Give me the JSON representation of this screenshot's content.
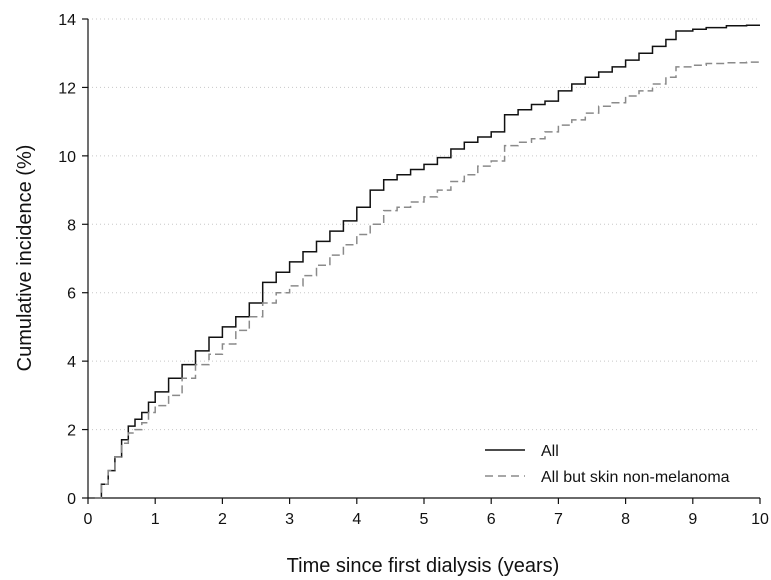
{
  "chart_data": {
    "type": "line",
    "title": "",
    "xlabel": "Time since first dialysis (years)",
    "ylabel": "Cumulative incidence (%)",
    "xlim": [
      0,
      10
    ],
    "ylim": [
      0,
      14
    ],
    "x_ticks": [
      0,
      1,
      2,
      3,
      4,
      5,
      6,
      7,
      8,
      9,
      10
    ],
    "y_ticks": [
      0,
      2,
      4,
      6,
      8,
      10,
      12,
      14
    ],
    "grid": "horizontal dotted",
    "legend_position": "bottom-right",
    "series": [
      {
        "name": "All",
        "style": "solid",
        "color": "#111111",
        "x": [
          0.1,
          0.2,
          0.3,
          0.4,
          0.5,
          0.6,
          0.7,
          0.8,
          0.9,
          1.0,
          1.2,
          1.4,
          1.6,
          1.8,
          2.0,
          2.2,
          2.4,
          2.6,
          2.8,
          3.0,
          3.2,
          3.4,
          3.6,
          3.8,
          4.0,
          4.2,
          4.4,
          4.6,
          4.8,
          5.0,
          5.2,
          5.4,
          5.6,
          5.8,
          6.0,
          6.2,
          6.4,
          6.6,
          6.8,
          7.0,
          7.2,
          7.4,
          7.6,
          7.8,
          8.0,
          8.2,
          8.4,
          8.6,
          8.75,
          9.0,
          9.2,
          9.5,
          9.8,
          10.0
        ],
        "y": [
          0.0,
          0.4,
          0.8,
          1.2,
          1.7,
          2.1,
          2.3,
          2.5,
          2.8,
          3.1,
          3.5,
          3.9,
          4.3,
          4.7,
          5.0,
          5.3,
          5.7,
          6.3,
          6.6,
          6.9,
          7.2,
          7.5,
          7.8,
          8.1,
          8.5,
          9.0,
          9.3,
          9.45,
          9.6,
          9.75,
          9.95,
          10.2,
          10.4,
          10.55,
          10.7,
          11.2,
          11.35,
          11.5,
          11.6,
          11.9,
          12.1,
          12.3,
          12.45,
          12.6,
          12.8,
          13.0,
          13.2,
          13.4,
          13.65,
          13.7,
          13.75,
          13.8,
          13.82,
          13.82
        ]
      },
      {
        "name": "All but skin non-melanoma",
        "style": "dashed",
        "color": "#8a8a8a",
        "x": [
          0.1,
          0.2,
          0.3,
          0.4,
          0.5,
          0.6,
          0.7,
          0.8,
          0.9,
          1.0,
          1.2,
          1.4,
          1.6,
          1.8,
          2.0,
          2.2,
          2.4,
          2.6,
          2.8,
          3.0,
          3.2,
          3.4,
          3.6,
          3.8,
          4.0,
          4.2,
          4.4,
          4.6,
          4.8,
          5.0,
          5.2,
          5.4,
          5.6,
          5.8,
          6.0,
          6.2,
          6.4,
          6.6,
          6.8,
          7.0,
          7.2,
          7.4,
          7.6,
          7.8,
          8.0,
          8.2,
          8.4,
          8.6,
          8.75,
          9.0,
          9.2,
          9.5,
          9.8,
          10.0
        ],
        "y": [
          0.0,
          0.4,
          0.8,
          1.2,
          1.6,
          1.9,
          2.0,
          2.2,
          2.5,
          2.7,
          3.0,
          3.5,
          3.9,
          4.2,
          4.5,
          4.9,
          5.3,
          5.7,
          6.0,
          6.2,
          6.5,
          6.8,
          7.1,
          7.4,
          7.7,
          8.0,
          8.4,
          8.5,
          8.65,
          8.8,
          9.0,
          9.25,
          9.45,
          9.7,
          9.85,
          10.3,
          10.4,
          10.5,
          10.7,
          10.9,
          11.05,
          11.25,
          11.45,
          11.55,
          11.75,
          11.9,
          12.1,
          12.3,
          12.6,
          12.65,
          12.7,
          12.72,
          12.74,
          12.76
        ]
      }
    ]
  }
}
